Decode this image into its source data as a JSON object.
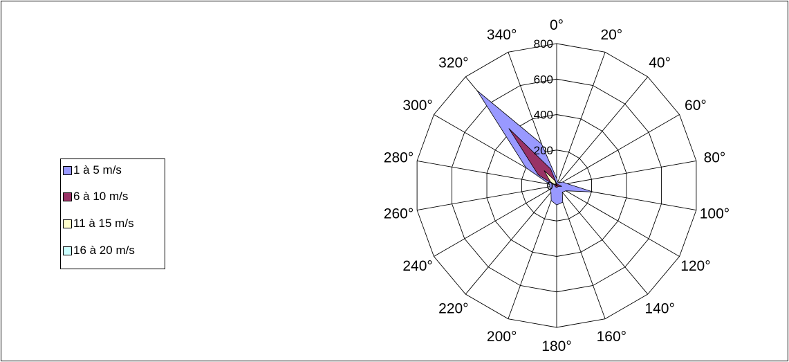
{
  "chart_data": {
    "type": "radar",
    "angles": [
      "0°",
      "20°",
      "40°",
      "60°",
      "80°",
      "100°",
      "120°",
      "140°",
      "160°",
      "180°",
      "200°",
      "220°",
      "240°",
      "260°",
      "280°",
      "300°",
      "320°",
      "340°"
    ],
    "radial_ticks": [
      "0",
      "200",
      "400",
      "600",
      "800"
    ],
    "rmax": 800,
    "series": [
      {
        "name": "1 à 5 m/s",
        "color": "#9999ff",
        "values": [
          40,
          20,
          20,
          40,
          60,
          210,
          60,
          50,
          100,
          110,
          90,
          50,
          40,
          40,
          40,
          200,
          700,
          250
        ]
      },
      {
        "name": "6 à 10 m/s",
        "color": "#993366",
        "values": [
          10,
          10,
          10,
          10,
          15,
          30,
          10,
          10,
          10,
          10,
          10,
          10,
          10,
          10,
          10,
          120,
          420,
          100
        ]
      },
      {
        "name": "11 à 15 m/s",
        "color": "#ffffcc",
        "values": [
          3,
          3,
          3,
          3,
          3,
          5,
          3,
          3,
          3,
          3,
          3,
          3,
          3,
          3,
          3,
          40,
          110,
          30
        ]
      },
      {
        "name": "16 à 20 m/s",
        "color": "#ccffff",
        "values": [
          1,
          1,
          1,
          1,
          1,
          1,
          1,
          1,
          1,
          1,
          1,
          1,
          1,
          1,
          1,
          5,
          15,
          5
        ]
      }
    ],
    "legend_position": "left"
  }
}
